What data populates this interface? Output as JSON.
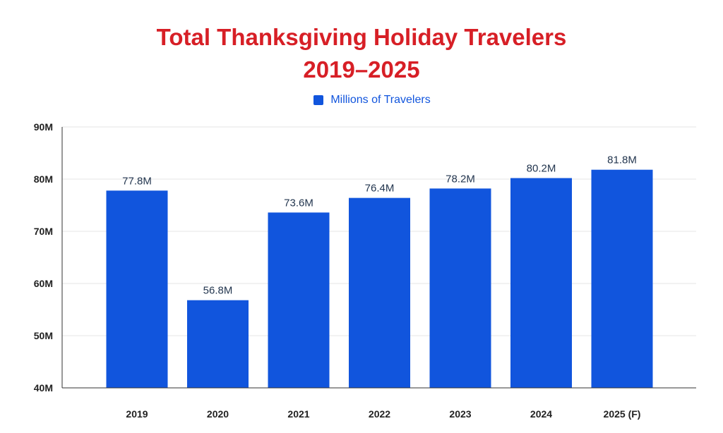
{
  "chart_data": {
    "type": "bar",
    "title_lines": [
      "Total Thanksgiving Holiday Travelers",
      "2019–2025"
    ],
    "categories": [
      "2019",
      "2020",
      "2021",
      "2022",
      "2023",
      "2024",
      "2025 (F)"
    ],
    "series": [
      {
        "name": "Millions of Travelers",
        "values": [
          77.8,
          56.8,
          73.6,
          76.4,
          78.2,
          80.2,
          81.8
        ],
        "value_labels": [
          "77.8M",
          "56.8M",
          "73.6M",
          "76.4M",
          "78.2M",
          "80.2M",
          "81.8M"
        ]
      }
    ],
    "ylim": [
      40,
      90
    ],
    "yticks": [
      40,
      50,
      60,
      70,
      80,
      90
    ],
    "ytick_labels": [
      "40M",
      "50M",
      "60M",
      "70M",
      "80M",
      "90M"
    ],
    "grid": true,
    "legend_position": "top-center",
    "colors": {
      "title": "#d71f26",
      "bar": "#1155dd",
      "legend_text": "#1155dd",
      "grid": "#e6e6e6",
      "axis": "#333333"
    }
  }
}
